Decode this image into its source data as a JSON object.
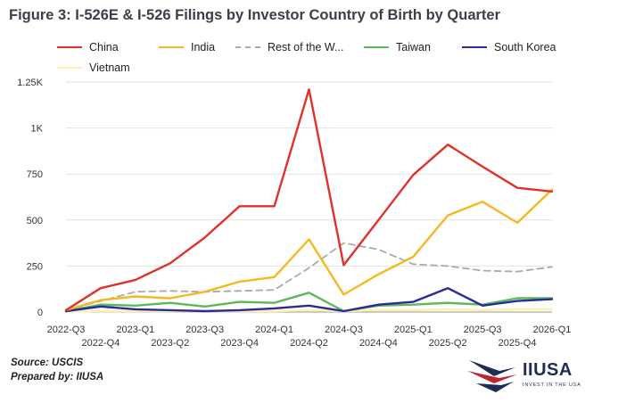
{
  "title": "Figure 3: I-526E & I-526 Filings by Investor Country of Birth by Quarter",
  "source_line": "Source: USCIS",
  "prepared_line": "Prepared by: IIUSA",
  "logo": {
    "name": "IIUSA",
    "tagline": "INVEST IN THE USA"
  },
  "chart_data": {
    "type": "line",
    "x": [
      "2022-Q3",
      "2022-Q4",
      "2023-Q1",
      "2023-Q2",
      "2023-Q3",
      "2023-Q4",
      "2024-Q1",
      "2024-Q2",
      "2024-Q3",
      "2024-Q4",
      "2025-Q1",
      "2025-Q2",
      "2025-Q3",
      "2025-Q4",
      "2026-Q1"
    ],
    "x_tick_labels_upper": [
      "2022-Q3",
      "2023-Q1",
      "2023-Q3",
      "2024-Q1",
      "2024-Q3",
      "2025-Q1",
      "2025-Q3",
      "2026-Q1"
    ],
    "x_tick_labels_lower": [
      "2022-Q4",
      "2023-Q2",
      "2023-Q4",
      "2024-Q2",
      "2024-Q4",
      "2025-Q2",
      "2025-Q4"
    ],
    "y_ticks": [
      {
        "value": 0,
        "label": "0"
      },
      {
        "value": 250,
        "label": "250"
      },
      {
        "value": 500,
        "label": "500"
      },
      {
        "value": 750,
        "label": "750"
      },
      {
        "value": 1000,
        "label": "1K"
      },
      {
        "value": 1250,
        "label": "1.25K"
      }
    ],
    "ylim": [
      0,
      1250
    ],
    "grid": true,
    "legend_position": "top",
    "series": [
      {
        "name": "China",
        "color": "#e0312a",
        "dash": false,
        "values": [
          10,
          130,
          175,
          265,
          405,
          575,
          575,
          1210,
          255,
          500,
          745,
          910,
          790,
          675,
          655
        ]
      },
      {
        "name": "India",
        "color": "#f5b820",
        "dash": false,
        "values": [
          10,
          65,
          85,
          75,
          110,
          165,
          190,
          395,
          95,
          205,
          300,
          525,
          600,
          485,
          665
        ]
      },
      {
        "name": "Rest of the W...",
        "color": "#aaaaaa",
        "dash": true,
        "values": [
          10,
          60,
          110,
          115,
          110,
          115,
          120,
          240,
          375,
          340,
          260,
          250,
          225,
          220,
          245
        ]
      },
      {
        "name": "Taiwan",
        "color": "#5cb85c",
        "dash": false,
        "values": [
          5,
          40,
          35,
          50,
          30,
          55,
          50,
          105,
          5,
          35,
          40,
          50,
          40,
          75,
          75
        ]
      },
      {
        "name": "South Korea",
        "color": "#2a2a9a",
        "dash": false,
        "values": [
          5,
          30,
          15,
          10,
          5,
          10,
          20,
          35,
          5,
          40,
          55,
          130,
          35,
          60,
          70
        ]
      },
      {
        "name": "Vietnam",
        "color": "#fff0b0",
        "dash": false,
        "values": [
          2,
          5,
          5,
          5,
          5,
          5,
          5,
          10,
          5,
          10,
          10,
          15,
          10,
          15,
          15
        ]
      }
    ]
  }
}
